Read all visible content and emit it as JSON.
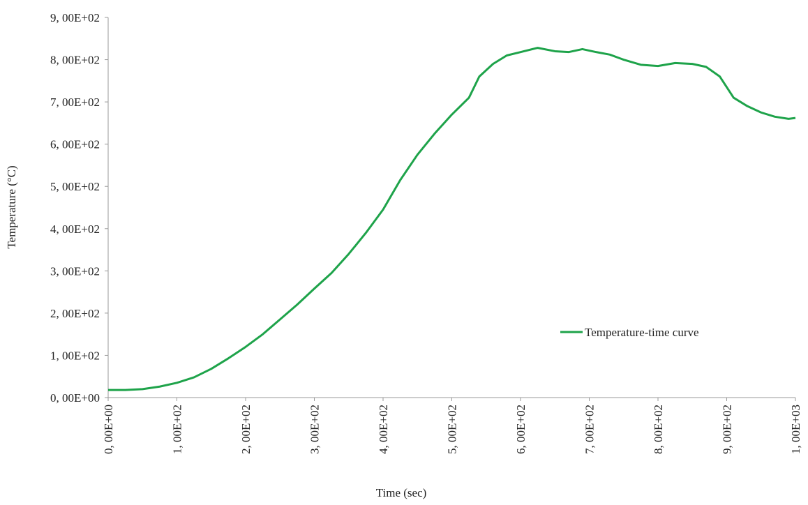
{
  "chart_data": {
    "type": "line",
    "x_label": "Time (sec)",
    "y_label": "Temperature (°C)",
    "x": [
      0,
      25,
      50,
      75,
      100,
      125,
      150,
      175,
      200,
      225,
      250,
      275,
      300,
      325,
      350,
      375,
      400,
      425,
      450,
      475,
      500,
      525,
      540,
      560,
      580,
      600,
      625,
      650,
      670,
      690,
      710,
      730,
      750,
      775,
      800,
      825,
      850,
      870,
      890,
      910,
      930,
      950,
      970,
      990,
      1000
    ],
    "series": [
      {
        "name": "Temperature-time curve",
        "color": "#1ea34a",
        "values": [
          18,
          18,
          20,
          26,
          35,
          48,
          68,
          93,
          120,
          150,
          185,
          220,
          258,
          295,
          340,
          390,
          445,
          515,
          575,
          625,
          670,
          710,
          760,
          790,
          810,
          818,
          828,
          820,
          818,
          825,
          818,
          812,
          800,
          788,
          785,
          792,
          790,
          783,
          760,
          710,
          690,
          675,
          665,
          660,
          662
        ]
      }
    ],
    "xlim": [
      0,
      1000
    ],
    "xticks": [
      {
        "value": 0,
        "label": "0, 00E+00"
      },
      {
        "value": 100,
        "label": "1, 00E+02"
      },
      {
        "value": 200,
        "label": "2, 00E+02"
      },
      {
        "value": 300,
        "label": "3, 00E+02"
      },
      {
        "value": 400,
        "label": "4, 00E+02"
      },
      {
        "value": 500,
        "label": "5, 00E+02"
      },
      {
        "value": 600,
        "label": "6, 00E+02"
      },
      {
        "value": 700,
        "label": "7, 00E+02"
      },
      {
        "value": 800,
        "label": "8, 00E+02"
      },
      {
        "value": 900,
        "label": "9, 00E+02"
      },
      {
        "value": 1000,
        "label": "1, 00E+03"
      }
    ],
    "ylim": [
      0,
      900
    ],
    "yticks": [
      {
        "value": 0,
        "label": "0, 00E+00"
      },
      {
        "value": 100,
        "label": "1, 00E+02"
      },
      {
        "value": 200,
        "label": "2, 00E+02"
      },
      {
        "value": 300,
        "label": "3, 00E+02"
      },
      {
        "value": 400,
        "label": "4, 00E+02"
      },
      {
        "value": 500,
        "label": "5, 00E+02"
      },
      {
        "value": 600,
        "label": "6, 00E+02"
      },
      {
        "value": 700,
        "label": "7, 00E+02"
      },
      {
        "value": 800,
        "label": "8, 00E+02"
      },
      {
        "value": 900,
        "label": "9, 00E+02"
      }
    ],
    "grid": false,
    "legend": "right"
  }
}
